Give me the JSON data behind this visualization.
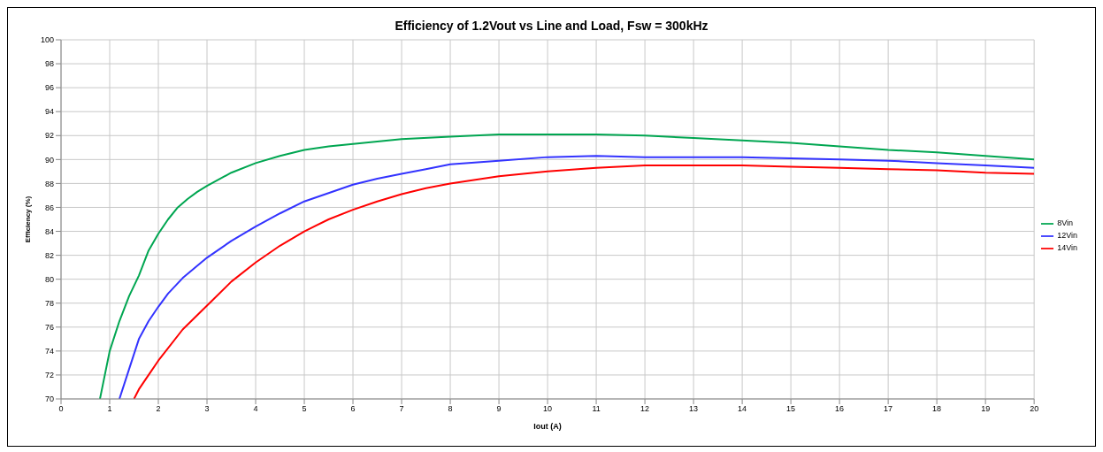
{
  "chart_data": {
    "type": "line",
    "title": "Efficiency of 1.2Vout vs Line and Load, Fsw = 300kHz",
    "xlabel": "Iout (A)",
    "ylabel": "Efficiency (%)",
    "xlim": [
      0,
      20
    ],
    "xticks": [
      0,
      1,
      2,
      3,
      4,
      5,
      6,
      7,
      8,
      9,
      10,
      11,
      12,
      13,
      14,
      15,
      16,
      17,
      18,
      19,
      20
    ],
    "ylim": [
      70,
      100
    ],
    "yticks": [
      70,
      72,
      74,
      76,
      78,
      80,
      82,
      84,
      86,
      88,
      90,
      92,
      94,
      96,
      98,
      100
    ],
    "grid": true,
    "legend": "right",
    "marker": "none",
    "line_style": "solid",
    "series": [
      {
        "name": "8Vin",
        "color": "#00a651",
        "x": [
          0.8,
          1.0,
          1.2,
          1.4,
          1.6,
          1.8,
          2.0,
          2.2,
          2.4,
          2.6,
          2.8,
          3.0,
          3.5,
          4,
          4.5,
          5,
          5.5,
          6,
          6.5,
          7,
          8,
          9,
          10,
          11,
          12,
          13,
          14,
          15,
          16,
          17,
          18,
          19,
          20
        ],
        "values": [
          70,
          74,
          76.5,
          78.6,
          80.3,
          82.4,
          83.8,
          85.0,
          86.0,
          86.7,
          87.3,
          87.8,
          88.9,
          89.7,
          90.3,
          90.8,
          91.1,
          91.3,
          91.5,
          91.7,
          91.9,
          92.1,
          92.1,
          92.1,
          92.0,
          91.8,
          91.6,
          91.4,
          91.1,
          90.8,
          90.6,
          90.3,
          90.0
        ]
      },
      {
        "name": "12Vin",
        "color": "#3333ff",
        "x": [
          1.2,
          1.4,
          1.6,
          1.8,
          2.0,
          2.2,
          2.5,
          3,
          3.5,
          4,
          4.5,
          5,
          5.5,
          6,
          6.5,
          7,
          7.5,
          8,
          9,
          10,
          11,
          12,
          13,
          14,
          15,
          16,
          17,
          18,
          19,
          20
        ],
        "values": [
          70,
          72.5,
          75,
          76.5,
          77.7,
          78.8,
          80.1,
          81.8,
          83.2,
          84.4,
          85.5,
          86.5,
          87.2,
          87.9,
          88.4,
          88.8,
          89.2,
          89.6,
          89.9,
          90.2,
          90.3,
          90.2,
          90.2,
          90.2,
          90.1,
          90.0,
          89.9,
          89.7,
          89.5,
          89.3
        ]
      },
      {
        "name": "14Vin",
        "color": "#ff0000",
        "x": [
          1.5,
          1.6,
          1.8,
          2,
          2.5,
          3,
          3.5,
          4,
          4.5,
          5,
          5.5,
          6,
          6.5,
          7,
          7.5,
          8,
          9,
          10,
          11,
          12,
          13,
          14,
          15,
          16,
          17,
          18,
          19,
          20
        ],
        "values": [
          70,
          70.8,
          72,
          73.2,
          75.8,
          77.8,
          79.8,
          81.4,
          82.8,
          84.0,
          85.0,
          85.8,
          86.5,
          87.1,
          87.6,
          88.0,
          88.6,
          89.0,
          89.3,
          89.5,
          89.5,
          89.5,
          89.4,
          89.3,
          89.2,
          89.1,
          88.9,
          88.8
        ]
      }
    ]
  }
}
